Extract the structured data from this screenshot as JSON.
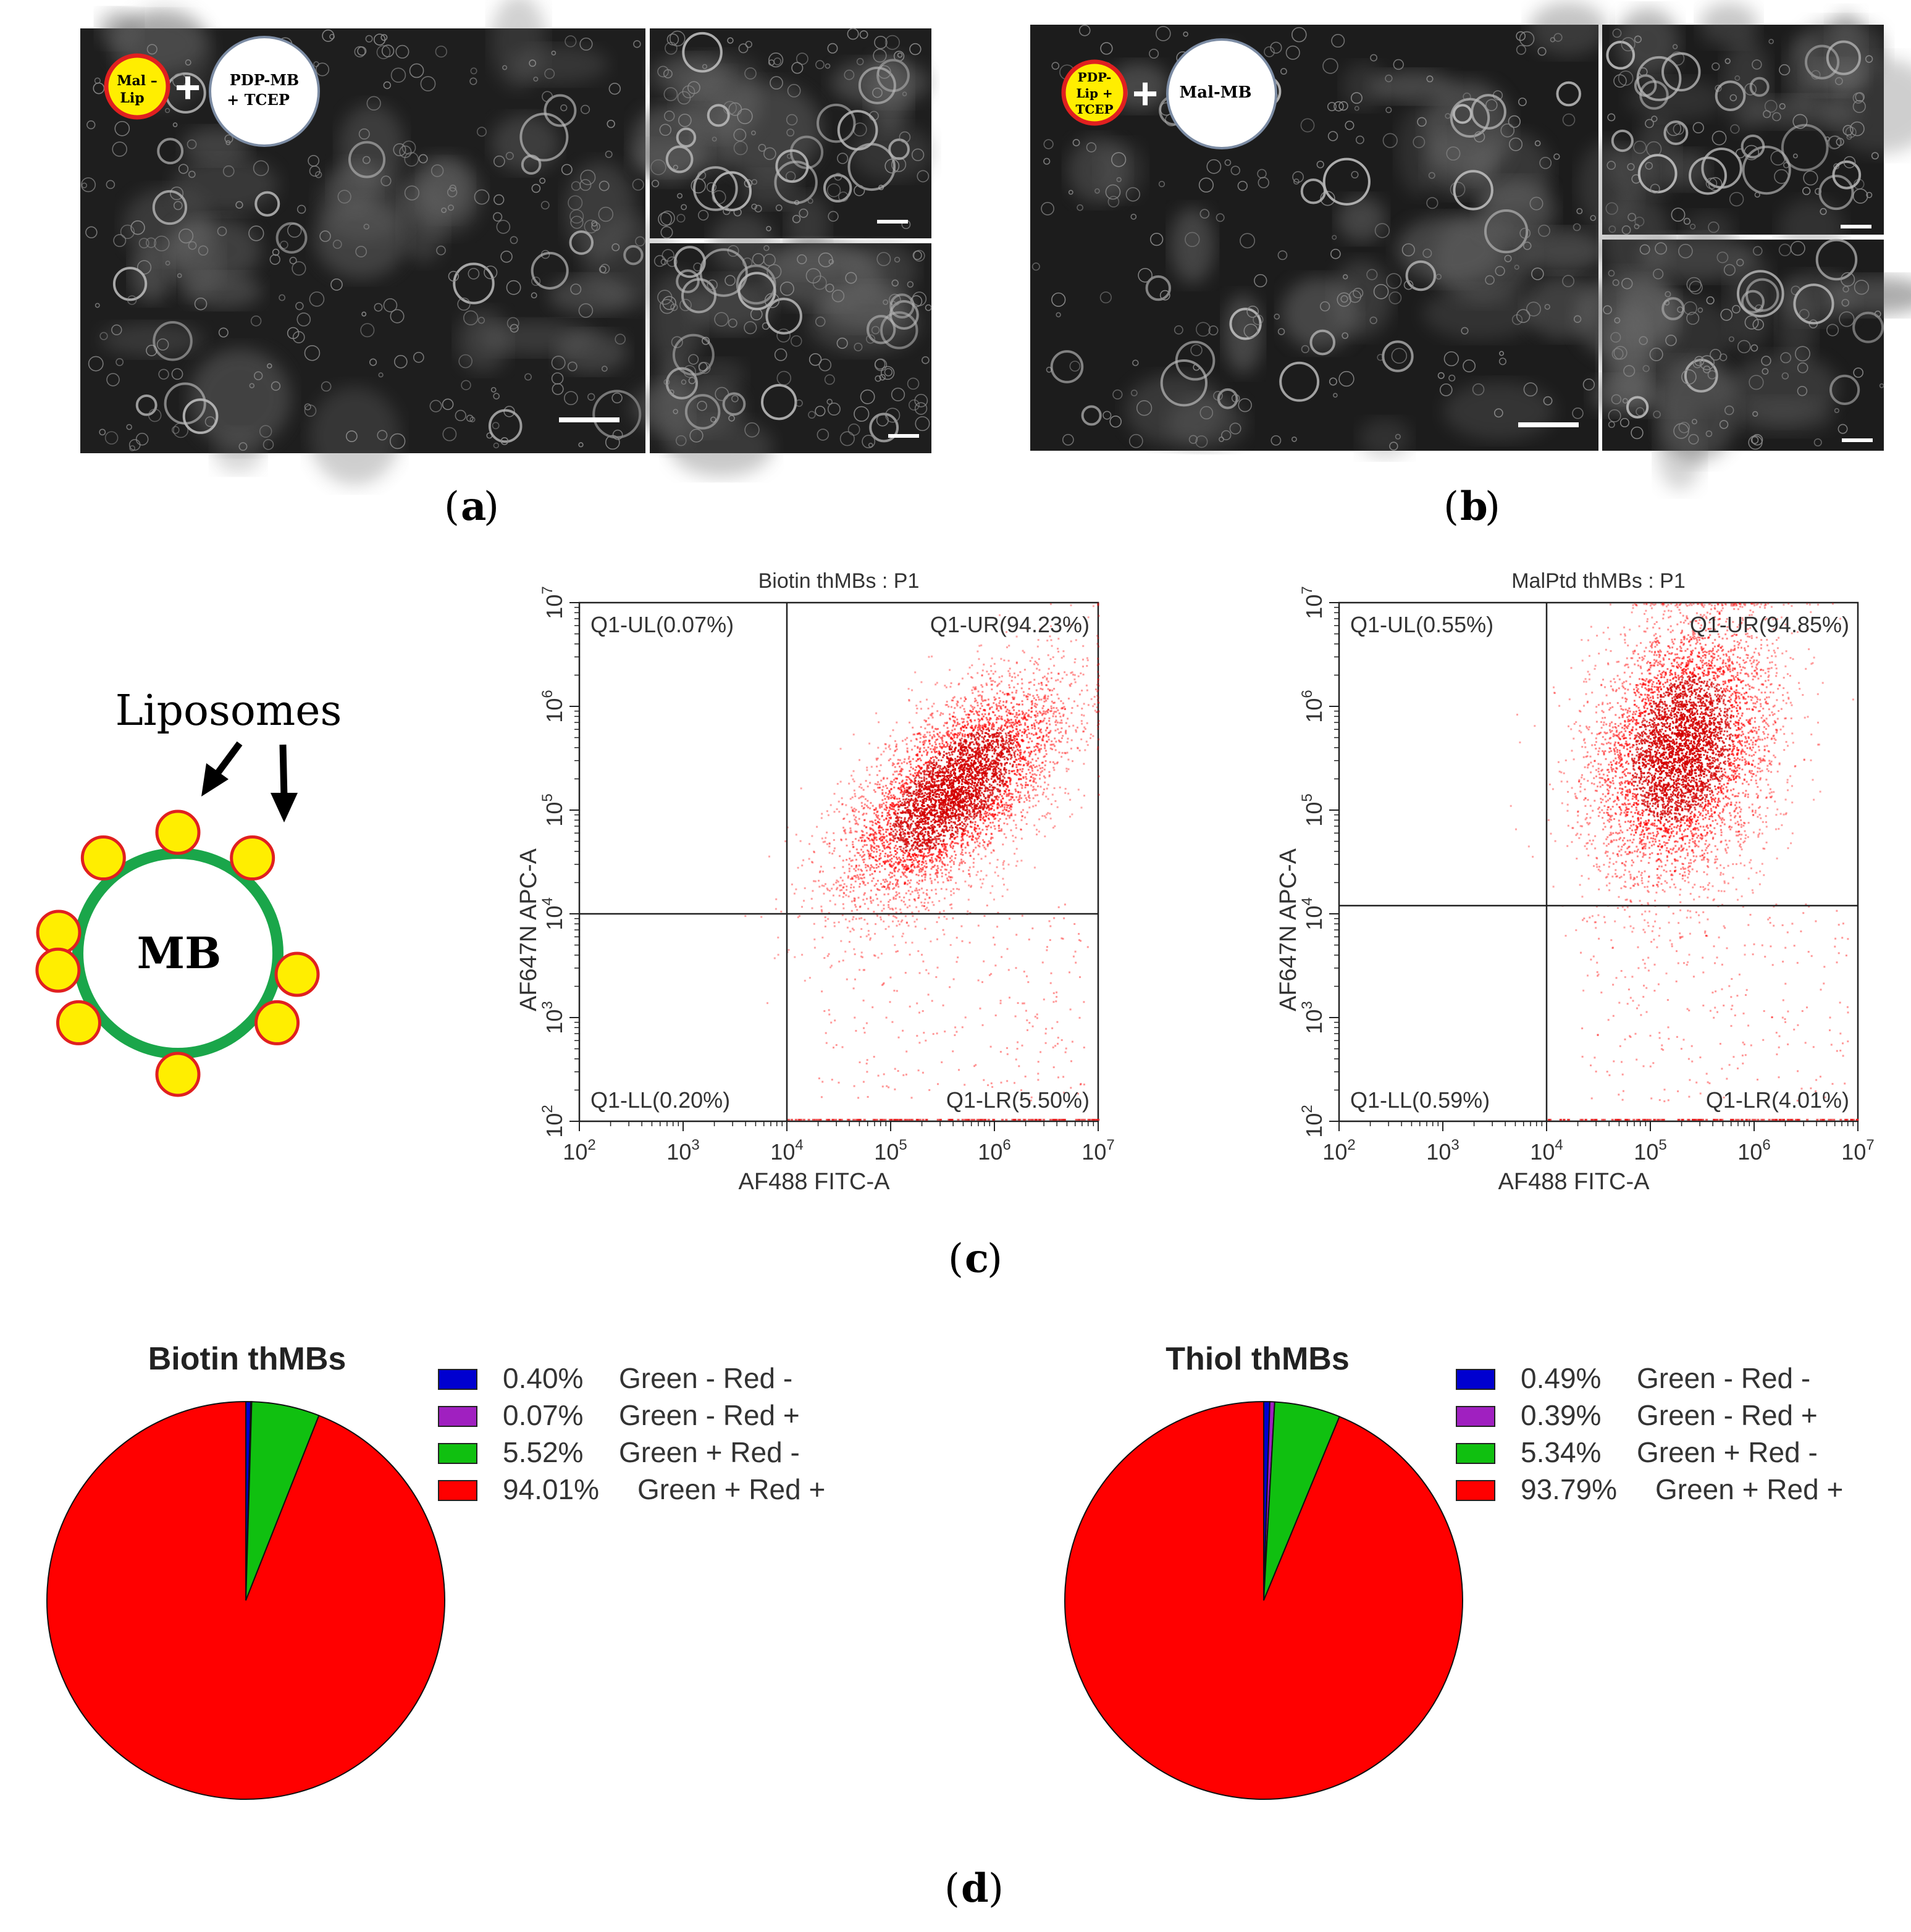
{
  "panel_a": {
    "label_open": "(",
    "label_letter": "a",
    "label_close": ")",
    "badge_lip": [
      "Mal –",
      "Lip"
    ],
    "badge_mb": [
      "PDP-MB",
      "+ TCEP"
    ],
    "plus": "+"
  },
  "panel_b": {
    "label_open": "(",
    "label_letter": "b",
    "label_close": ")",
    "badge_lip": [
      "PDP-",
      "Lip +",
      "TCEP"
    ],
    "badge_mb": [
      "Mal-MB"
    ],
    "plus": "+"
  },
  "panel_c": {
    "label_open": "(",
    "label_letter": "c",
    "label_close": ")",
    "schematic": {
      "liposomes_label": "Liposomes",
      "mb_label": "MB"
    }
  },
  "panel_d": {
    "label_open": "(",
    "label_letter": "d",
    "label_close": ")"
  },
  "colors": {
    "dot_red": "#ff0000",
    "liposome_yellow": "#ffee00",
    "mb_green": "#1aa64a",
    "legend_blue": "#0000d0",
    "legend_purple": "#a020c0",
    "legend_green": "#10c010",
    "legend_red": "#ff0000"
  },
  "chart_data": [
    {
      "type": "scatter",
      "title": "Biotin thMBs : P1",
      "xlabel": "AF488 FITC-A",
      "ylabel": "AF647N APC-A",
      "xscale": "log",
      "yscale": "log",
      "xlim": [
        100,
        10000000
      ],
      "ylim": [
        100,
        10000000
      ],
      "x_ticks": [
        "2",
        "3",
        "4",
        "5",
        "6",
        "7"
      ],
      "tick_base": "10",
      "gate_x": 10000,
      "gate_y": 10000,
      "quadrants": {
        "UL": "Q1-UL(0.07%)",
        "UR": "Q1-UR(94.23%)",
        "LL": "Q1-LL(0.20%)",
        "LR": "Q1-LR(5.50%)"
      },
      "cloud": {
        "center_log": [
          5.6,
          5.2
        ],
        "spread_log": [
          0.55,
          0.55
        ],
        "trend": 0.65
      }
    },
    {
      "type": "scatter",
      "title": "MalPtd thMBs : P1",
      "xlabel": "AF488 FITC-A",
      "ylabel": "AF647N APC-A",
      "xscale": "log",
      "yscale": "log",
      "xlim": [
        100,
        10000000
      ],
      "ylim": [
        100,
        10000000
      ],
      "x_ticks": [
        "2",
        "3",
        "4",
        "5",
        "6",
        "7"
      ],
      "tick_base": "10",
      "gate_x": 10000,
      "gate_y": 12000,
      "quadrants": {
        "UL": "Q1-UL(0.55%)",
        "UR": "Q1-UR(94.85%)",
        "LL": "Q1-LL(0.59%)",
        "LR": "Q1-LR(4.01%)"
      },
      "cloud": {
        "center_log": [
          5.3,
          5.6
        ],
        "spread_log": [
          0.45,
          0.65
        ],
        "trend": 0.25
      }
    },
    {
      "type": "pie",
      "title": "Biotin thMBs",
      "labels": [
        "Green - Red -",
        "Green - Red +",
        "Green + Red -",
        "Green + Red +"
      ],
      "percent_labels": [
        "0.40%",
        "0.07%",
        "5.52%",
        "94.01%"
      ],
      "values": [
        0.4,
        0.07,
        5.52,
        94.01
      ],
      "colors": [
        "#0000d0",
        "#a020c0",
        "#10c010",
        "#ff0000"
      ]
    },
    {
      "type": "pie",
      "title": "Thiol thMBs",
      "labels": [
        "Green - Red -",
        "Green - Red +",
        "Green + Red -",
        "Green + Red +"
      ],
      "percent_labels": [
        "0.49%",
        "0.39%",
        "5.34%",
        "93.79%"
      ],
      "values": [
        0.49,
        0.39,
        5.34,
        93.79
      ],
      "colors": [
        "#0000d0",
        "#a020c0",
        "#10c010",
        "#ff0000"
      ]
    }
  ]
}
